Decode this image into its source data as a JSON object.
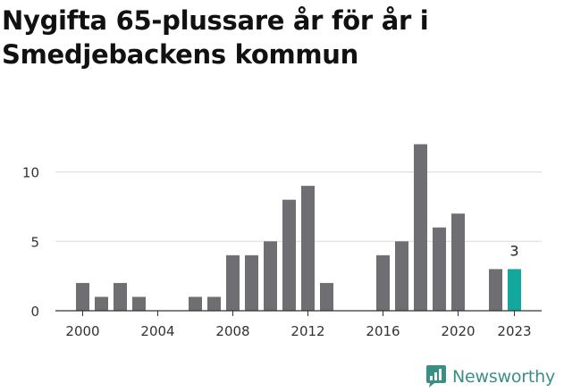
{
  "title": "Nygifta 65-plussare år för år i Smedjebackens kommun",
  "brand": "Newsworthy",
  "colors": {
    "bar": "#6e6e73",
    "highlight": "#13a89e",
    "brand": "#3a8f84"
  },
  "chart_data": {
    "type": "bar",
    "x": [
      2000,
      2001,
      2002,
      2003,
      2004,
      2005,
      2006,
      2007,
      2008,
      2009,
      2010,
      2011,
      2012,
      2013,
      2014,
      2015,
      2016,
      2017,
      2018,
      2019,
      2020,
      2021,
      2022,
      2023
    ],
    "values": [
      2,
      1,
      2,
      1,
      0,
      0,
      1,
      1,
      4,
      4,
      5,
      8,
      9,
      2,
      0,
      0,
      4,
      5,
      12,
      6,
      7,
      0,
      3,
      3
    ],
    "xticks": [
      "2000",
      "2004",
      "2008",
      "2012",
      "2016",
      "2020",
      "2023"
    ],
    "yticks": [
      "0",
      "5",
      "10"
    ],
    "ylim": [
      0,
      12
    ],
    "highlight_year": 2023,
    "highlight_label": "3",
    "grid": "horizontal"
  }
}
